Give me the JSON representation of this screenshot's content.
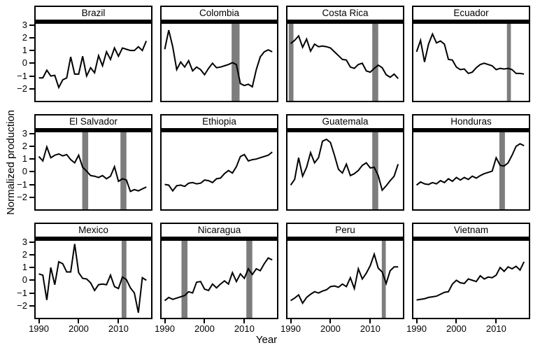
{
  "figure": {
    "xlabel": "Year",
    "ylabel": "Normalized production"
  },
  "labels": {
    "x_tick_labels": [
      "1990",
      "2000",
      "2010"
    ],
    "y_tick_labels": [
      "3",
      "2",
      "1",
      "0",
      "−1",
      "−2"
    ]
  },
  "colors": {
    "line": "#000000",
    "band": "#7d7d7d",
    "border": "#000000",
    "background": "#ffffff"
  },
  "chart_data": {
    "type": "line",
    "title": "",
    "xlabel": "Year",
    "ylabel": "Normalized production",
    "grid": "off",
    "legend": "none",
    "x": [
      1990,
      1991,
      1992,
      1993,
      1994,
      1995,
      1996,
      1997,
      1998,
      1999,
      2000,
      2001,
      2002,
      2003,
      2004,
      2005,
      2006,
      2007,
      2008,
      2009,
      2010,
      2011,
      2012,
      2013,
      2014,
      2015,
      2016,
      2017
    ],
    "x_domain": [
      1989.2,
      2018.2
    ],
    "y_domain": [
      -2.95,
      3.1
    ],
    "x_ticks": [
      1990,
      2000,
      2010
    ],
    "y_ticks": [
      3,
      2,
      1,
      0,
      -1,
      -2
    ],
    "facets": [
      {
        "title": "Brazil",
        "values": [
          -1.15,
          -1.15,
          -0.55,
          -1.0,
          -0.95,
          -1.9,
          -1.3,
          -1.15,
          0.5,
          -0.85,
          -0.85,
          0.55,
          -1.0,
          -0.35,
          -0.75,
          0.6,
          -0.2,
          0.9,
          0.3,
          1.2,
          0.55,
          1.2,
          1.1,
          1.0,
          1.0,
          1.3,
          1.0,
          1.75
        ],
        "bands": []
      },
      {
        "title": "Colombia",
        "values": [
          1.1,
          2.6,
          1.3,
          -0.5,
          0.1,
          -0.3,
          0.2,
          -0.6,
          -0.3,
          -0.5,
          -0.9,
          -0.4,
          0.0,
          -0.35,
          -0.3,
          -0.2,
          -0.1,
          0.05,
          -0.1,
          -1.6,
          -1.75,
          -1.65,
          -1.85,
          -0.5,
          0.5,
          0.9,
          1.05,
          0.9
        ],
        "bands": [
          [
            2006.8,
            2008.8
          ]
        ]
      },
      {
        "title": "Costa Rica",
        "values": [
          1.55,
          1.8,
          2.15,
          1.25,
          1.9,
          0.95,
          1.5,
          1.3,
          1.35,
          1.3,
          1.2,
          0.9,
          0.6,
          0.3,
          0.25,
          -0.3,
          -0.4,
          -0.1,
          0.0,
          -0.6,
          -0.7,
          -0.4,
          -0.15,
          -0.35,
          -0.9,
          -1.1,
          -0.85,
          -1.2
        ],
        "bands": [
          [
            1989.5,
            1990.7
          ],
          [
            2010.5,
            2012.0
          ]
        ]
      },
      {
        "title": "Ecuador",
        "values": [
          0.9,
          1.8,
          0.1,
          1.5,
          2.3,
          1.6,
          1.75,
          1.5,
          0.3,
          0.25,
          -0.3,
          -0.5,
          -0.45,
          -0.8,
          -0.7,
          -0.35,
          -0.1,
          0.0,
          -0.1,
          -0.2,
          -0.5,
          -0.4,
          -0.45,
          -0.4,
          -0.5,
          -0.8,
          -0.8,
          -0.85
        ],
        "bands": [
          [
            2012.7,
            2013.7
          ]
        ]
      },
      {
        "title": "El Salvador",
        "values": [
          1.2,
          0.85,
          1.95,
          1.1,
          1.3,
          1.4,
          1.25,
          1.35,
          0.95,
          0.7,
          1.3,
          0.35,
          0.05,
          -0.3,
          -0.35,
          -0.45,
          -0.3,
          -0.55,
          -0.35,
          0.4,
          -0.75,
          -0.55,
          -0.65,
          -1.55,
          -1.4,
          -1.5,
          -1.35,
          -1.2
        ],
        "bands": [
          [
            2000.9,
            2002.4
          ],
          [
            2010.5,
            2012.0
          ]
        ]
      },
      {
        "title": "Ethiopia",
        "values": [
          -1.0,
          -1.05,
          -1.5,
          -1.1,
          -1.05,
          -1.15,
          -0.9,
          -0.85,
          -0.95,
          -0.9,
          -0.65,
          -0.7,
          -0.85,
          -0.55,
          -0.5,
          -0.15,
          0.1,
          -0.1,
          0.4,
          1.2,
          1.35,
          0.85,
          0.95,
          1.0,
          1.1,
          1.2,
          1.3,
          1.55
        ],
        "bands": []
      },
      {
        "title": "Guatemala",
        "values": [
          -1.05,
          -0.6,
          1.1,
          -0.35,
          0.35,
          1.5,
          0.7,
          1.1,
          2.4,
          2.55,
          2.3,
          1.3,
          0.2,
          -0.1,
          0.6,
          -0.3,
          -0.15,
          0.1,
          0.5,
          0.7,
          0.3,
          0.35,
          -0.3,
          -1.45,
          -1.1,
          -0.7,
          -0.35,
          0.6
        ],
        "bands": [
          [
            2010.5,
            2012.0
          ]
        ]
      },
      {
        "title": "Honduras",
        "values": [
          -1.05,
          -0.8,
          -0.95,
          -1.0,
          -0.85,
          -0.95,
          -0.7,
          -0.85,
          -0.55,
          -0.75,
          -0.45,
          -0.65,
          -0.45,
          -0.6,
          -0.35,
          -0.5,
          -0.3,
          -0.15,
          -0.05,
          0.05,
          1.1,
          0.5,
          0.45,
          0.7,
          1.3,
          2.0,
          2.2,
          2.05
        ],
        "bands": [
          [
            2010.8,
            2012.2
          ]
        ]
      },
      {
        "title": "Mexico",
        "values": [
          0.5,
          0.4,
          -1.55,
          1.0,
          -0.35,
          1.45,
          1.3,
          0.65,
          0.65,
          2.85,
          0.6,
          0.15,
          0.1,
          -0.2,
          -0.8,
          -0.35,
          -0.3,
          -0.35,
          0.4,
          -0.5,
          -0.65,
          0.25,
          0.05,
          -0.6,
          -1.0,
          -2.55,
          0.2,
          0.0
        ],
        "bands": [
          [
            2010.8,
            2012.0
          ]
        ]
      },
      {
        "title": "Nicaragua",
        "values": [
          -1.6,
          -1.35,
          -1.5,
          -1.4,
          -1.3,
          -1.2,
          -0.9,
          -1.0,
          -0.15,
          -0.1,
          -0.7,
          -0.8,
          -0.3,
          -0.6,
          -0.3,
          -0.05,
          -0.3,
          0.6,
          -0.1,
          0.5,
          0.15,
          0.9,
          0.45,
          0.9,
          0.75,
          1.3,
          1.75,
          1.6
        ],
        "bands": [
          [
            1994.2,
            1995.7
          ],
          [
            2010.5,
            2012.0
          ]
        ]
      },
      {
        "title": "Peru",
        "values": [
          -1.6,
          -1.4,
          -1.15,
          -1.8,
          -1.35,
          -1.1,
          -0.9,
          -1.0,
          -0.85,
          -0.75,
          -0.5,
          -0.45,
          -0.55,
          -0.3,
          -0.5,
          0.2,
          -0.65,
          0.9,
          0.1,
          0.55,
          1.15,
          2.05,
          0.95,
          0.65,
          -0.25,
          0.75,
          1.05,
          1.05
        ],
        "bands": [
          [
            2012.9,
            2013.9
          ]
        ]
      },
      {
        "title": "Vietnam",
        "values": [
          -1.55,
          -1.5,
          -1.45,
          -1.35,
          -1.3,
          -1.25,
          -1.1,
          -0.95,
          -0.9,
          -0.3,
          0.0,
          -0.2,
          -0.25,
          0.1,
          0.0,
          -0.1,
          0.35,
          0.1,
          0.25,
          0.2,
          0.4,
          1.0,
          0.7,
          1.05,
          0.9,
          1.1,
          0.8,
          1.45
        ],
        "bands": []
      }
    ]
  }
}
